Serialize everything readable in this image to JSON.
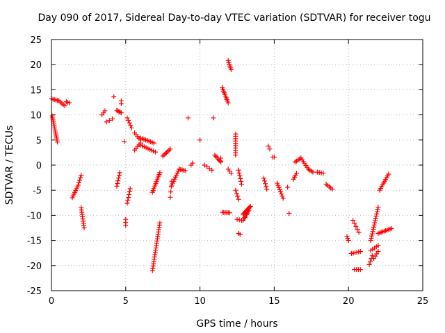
{
  "chart_data": {
    "type": "scatter",
    "title": "Day 090 of 2017, Sidereal Day-to-day VTEC variation (SDTVAR) for receiver togu",
    "xlabel": "GPS time / hours",
    "ylabel": "SDTVAR / TECUs",
    "xlim": [
      0,
      25
    ],
    "ylim": [
      -25,
      25
    ],
    "xticks": [
      0,
      5,
      10,
      15,
      20,
      25
    ],
    "yticks": [
      -25,
      -20,
      -15,
      -10,
      -5,
      0,
      5,
      10,
      15,
      20,
      25
    ],
    "grid": true,
    "marker": "+",
    "marker_color": "#ff0000",
    "series": [
      {
        "name": "SDTVAR",
        "segments": [
          {
            "x0": 0.0,
            "y0": 13.2,
            "x1": 0.5,
            "y1": 12.8,
            "n": 6
          },
          {
            "x0": 0.5,
            "y0": 12.8,
            "x1": 0.9,
            "y1": 11.8,
            "n": 5
          },
          {
            "x0": 1.0,
            "y0": 12.6,
            "x1": 1.2,
            "y1": 12.4,
            "n": 3
          },
          {
            "x0": 0.05,
            "y0": 9.8,
            "x1": 0.4,
            "y1": 4.6,
            "n": 14
          },
          {
            "x0": 1.4,
            "y0": -6.5,
            "x1": 1.8,
            "y1": -4.0,
            "n": 8
          },
          {
            "x0": 1.85,
            "y0": -3.5,
            "x1": 2.0,
            "y1": -2.0,
            "n": 4
          },
          {
            "x0": 2.0,
            "y0": -8.5,
            "x1": 2.2,
            "y1": -12.5,
            "n": 10
          },
          {
            "x0": 3.4,
            "y0": 10.0,
            "x1": 3.6,
            "y1": 10.8,
            "n": 3
          },
          {
            "x0": 3.7,
            "y0": 8.6,
            "x1": 4.1,
            "y1": 9.2,
            "n": 3
          },
          {
            "x0": 4.2,
            "y0": 13.6,
            "x1": 4.2,
            "y1": 13.6,
            "n": 1
          },
          {
            "x0": 4.4,
            "y0": 10.9,
            "x1": 4.7,
            "y1": 10.4,
            "n": 5
          },
          {
            "x0": 4.7,
            "y0": 12.8,
            "x1": 4.7,
            "y1": 12.2,
            "n": 2
          },
          {
            "x0": 4.4,
            "y0": -4.2,
            "x1": 4.6,
            "y1": -1.5,
            "n": 6
          },
          {
            "x0": 4.9,
            "y0": 4.7,
            "x1": 4.9,
            "y1": 4.7,
            "n": 1
          },
          {
            "x0": 5.1,
            "y0": 9.4,
            "x1": 5.4,
            "y1": 7.4,
            "n": 5
          },
          {
            "x0": 5.0,
            "y0": -10.8,
            "x1": 5.0,
            "y1": -12.0,
            "n": 3
          },
          {
            "x0": 5.1,
            "y0": -7.6,
            "x1": 5.3,
            "y1": -4.7,
            "n": 6
          },
          {
            "x0": 5.6,
            "y0": 6.4,
            "x1": 6.0,
            "y1": 5.0,
            "n": 5
          },
          {
            "x0": 5.6,
            "y0": 3.0,
            "x1": 6.0,
            "y1": 4.4,
            "n": 5
          },
          {
            "x0": 6.0,
            "y0": 5.4,
            "x1": 6.9,
            "y1": 4.4,
            "n": 9
          },
          {
            "x0": 6.0,
            "y0": 4.0,
            "x1": 7.0,
            "y1": 2.6,
            "n": 9
          },
          {
            "x0": 6.8,
            "y0": -5.4,
            "x1": 7.3,
            "y1": -1.5,
            "n": 12
          },
          {
            "x0": 6.8,
            "y0": -21.0,
            "x1": 7.3,
            "y1": -11.5,
            "n": 22
          },
          {
            "x0": 7.5,
            "y0": 1.8,
            "x1": 8.0,
            "y1": 3.2,
            "n": 7
          },
          {
            "x0": 8.0,
            "y0": -6.4,
            "x1": 8.1,
            "y1": -3.2,
            "n": 4
          },
          {
            "x0": 8.1,
            "y0": -4.0,
            "x1": 8.6,
            "y1": -0.8,
            "n": 9
          },
          {
            "x0": 8.6,
            "y0": -0.8,
            "x1": 9.0,
            "y1": -1.1,
            "n": 5
          },
          {
            "x0": 9.2,
            "y0": 9.4,
            "x1": 9.2,
            "y1": 9.4,
            "n": 1
          },
          {
            "x0": 9.4,
            "y0": 0.0,
            "x1": 9.5,
            "y1": 0.4,
            "n": 2
          },
          {
            "x0": 10.0,
            "y0": 5.0,
            "x1": 10.0,
            "y1": 5.0,
            "n": 1
          },
          {
            "x0": 10.3,
            "y0": 0.0,
            "x1": 10.8,
            "y1": -1.0,
            "n": 4
          },
          {
            "x0": 10.9,
            "y0": 9.4,
            "x1": 10.9,
            "y1": 9.4,
            "n": 1
          },
          {
            "x0": 11.0,
            "y0": 2.0,
            "x1": 11.4,
            "y1": 0.6,
            "n": 6
          },
          {
            "x0": 11.4,
            "y0": 1.4,
            "x1": 11.4,
            "y1": 0.8,
            "n": 2
          },
          {
            "x0": 11.5,
            "y0": 15.4,
            "x1": 11.9,
            "y1": 12.4,
            "n": 10
          },
          {
            "x0": 11.9,
            "y0": 20.8,
            "x1": 12.1,
            "y1": 19.0,
            "n": 6
          },
          {
            "x0": 11.5,
            "y0": -9.4,
            "x1": 12.0,
            "y1": -9.5,
            "n": 6
          },
          {
            "x0": 11.9,
            "y0": -0.8,
            "x1": 12.1,
            "y1": -1.6,
            "n": 3
          },
          {
            "x0": 12.4,
            "y0": 6.2,
            "x1": 12.4,
            "y1": 2.0,
            "n": 10
          },
          {
            "x0": 12.4,
            "y0": -5.0,
            "x1": 12.6,
            "y1": -6.8,
            "n": 4
          },
          {
            "x0": 12.6,
            "y0": -1.0,
            "x1": 12.8,
            "y1": -3.8,
            "n": 6
          },
          {
            "x0": 12.5,
            "y0": -10.8,
            "x1": 12.8,
            "y1": -11.0,
            "n": 3
          },
          {
            "x0": 12.6,
            "y0": -13.6,
            "x1": 12.7,
            "y1": -13.8,
            "n": 2
          },
          {
            "x0": 12.9,
            "y0": -9.8,
            "x1": 13.4,
            "y1": -8.2,
            "n": 10
          },
          {
            "x0": 12.9,
            "y0": -11.0,
            "x1": 13.3,
            "y1": -9.0,
            "n": 8
          },
          {
            "x0": 14.3,
            "y0": -2.6,
            "x1": 14.5,
            "y1": -4.8,
            "n": 5
          },
          {
            "x0": 14.6,
            "y0": 3.8,
            "x1": 14.7,
            "y1": 3.2,
            "n": 2
          },
          {
            "x0": 14.9,
            "y0": 1.6,
            "x1": 15.0,
            "y1": 1.6,
            "n": 2
          },
          {
            "x0": 15.2,
            "y0": -3.6,
            "x1": 15.6,
            "y1": -6.6,
            "n": 8
          },
          {
            "x0": 15.9,
            "y0": -4.4,
            "x1": 15.9,
            "y1": -4.4,
            "n": 1
          },
          {
            "x0": 16.0,
            "y0": -9.6,
            "x1": 16.0,
            "y1": -9.6,
            "n": 1
          },
          {
            "x0": 16.3,
            "y0": -2.8,
            "x1": 16.5,
            "y1": -1.6,
            "n": 4
          },
          {
            "x0": 16.4,
            "y0": 0.6,
            "x1": 16.8,
            "y1": 1.4,
            "n": 5
          },
          {
            "x0": 16.8,
            "y0": 1.4,
            "x1": 17.3,
            "y1": -0.8,
            "n": 7
          },
          {
            "x0": 17.3,
            "y0": -0.8,
            "x1": 17.6,
            "y1": -1.4,
            "n": 4
          },
          {
            "x0": 17.9,
            "y0": -1.4,
            "x1": 18.3,
            "y1": -1.6,
            "n": 4
          },
          {
            "x0": 18.5,
            "y0": -3.8,
            "x1": 18.9,
            "y1": -4.8,
            "n": 5
          },
          {
            "x0": 19.9,
            "y0": -14.2,
            "x1": 20.0,
            "y1": -15.0,
            "n": 3
          },
          {
            "x0": 20.2,
            "y0": -17.6,
            "x1": 20.8,
            "y1": -17.2,
            "n": 6
          },
          {
            "x0": 20.3,
            "y0": -11.0,
            "x1": 20.7,
            "y1": -13.4,
            "n": 5
          },
          {
            "x0": 20.4,
            "y0": -20.8,
            "x1": 20.8,
            "y1": -20.8,
            "n": 4
          },
          {
            "x0": 21.4,
            "y0": -19.8,
            "x1": 21.6,
            "y1": -18.0,
            "n": 4
          },
          {
            "x0": 21.5,
            "y0": -17.0,
            "x1": 22.0,
            "y1": -16.0,
            "n": 5
          },
          {
            "x0": 21.5,
            "y0": -15.0,
            "x1": 22.0,
            "y1": -8.4,
            "n": 16
          },
          {
            "x0": 21.7,
            "y0": -18.6,
            "x1": 22.0,
            "y1": -17.2,
            "n": 4
          },
          {
            "x0": 22.0,
            "y0": -13.6,
            "x1": 22.9,
            "y1": -12.6,
            "n": 10
          },
          {
            "x0": 22.1,
            "y0": -5.0,
            "x1": 22.7,
            "y1": -1.8,
            "n": 10
          }
        ]
      }
    ]
  }
}
